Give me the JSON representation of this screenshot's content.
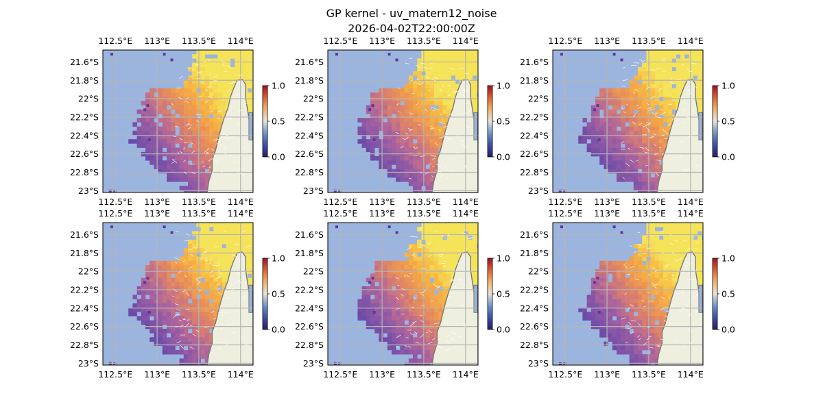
{
  "title": "GP kernel - uv_matern12_noise",
  "subtitle": "2026-04-02T22:00:00Z",
  "colors": {
    "ocean": "#9bb5df",
    "land": "#efefdf",
    "coast": "#777777",
    "grid": "#b5b5b5",
    "colormap": [
      "#2a1a6e",
      "#3a4ea8",
      "#6b95c8",
      "#e8e3da",
      "#f5b46a",
      "#e0612f",
      "#a50d1f"
    ]
  },
  "chart_data": {
    "type": "heatmap",
    "layout": "2 rows x 3 columns of map panels",
    "x_ticks": [
      "112.5°E",
      "113°E",
      "113.5°E",
      "114°E"
    ],
    "y_ticks": [
      "21.6°S",
      "21.8°S",
      "22°S",
      "22.2°S",
      "22.4°S",
      "22.6°S",
      "22.8°S",
      "23°S"
    ],
    "lon_range": [
      112.35,
      114.15
    ],
    "lat_range": [
      -23.02,
      -21.47
    ],
    "colorbar": {
      "range": [
        0.0,
        1.0
      ],
      "ticks": [
        "0.0",
        "0.5",
        "1.0"
      ]
    },
    "grid": true,
    "panels": [
      {
        "row": 1,
        "col": 1
      },
      {
        "row": 1,
        "col": 2
      },
      {
        "row": 1,
        "col": 3
      },
      {
        "row": 2,
        "col": 1
      },
      {
        "row": 2,
        "col": 2
      },
      {
        "row": 2,
        "col": 3
      }
    ]
  }
}
